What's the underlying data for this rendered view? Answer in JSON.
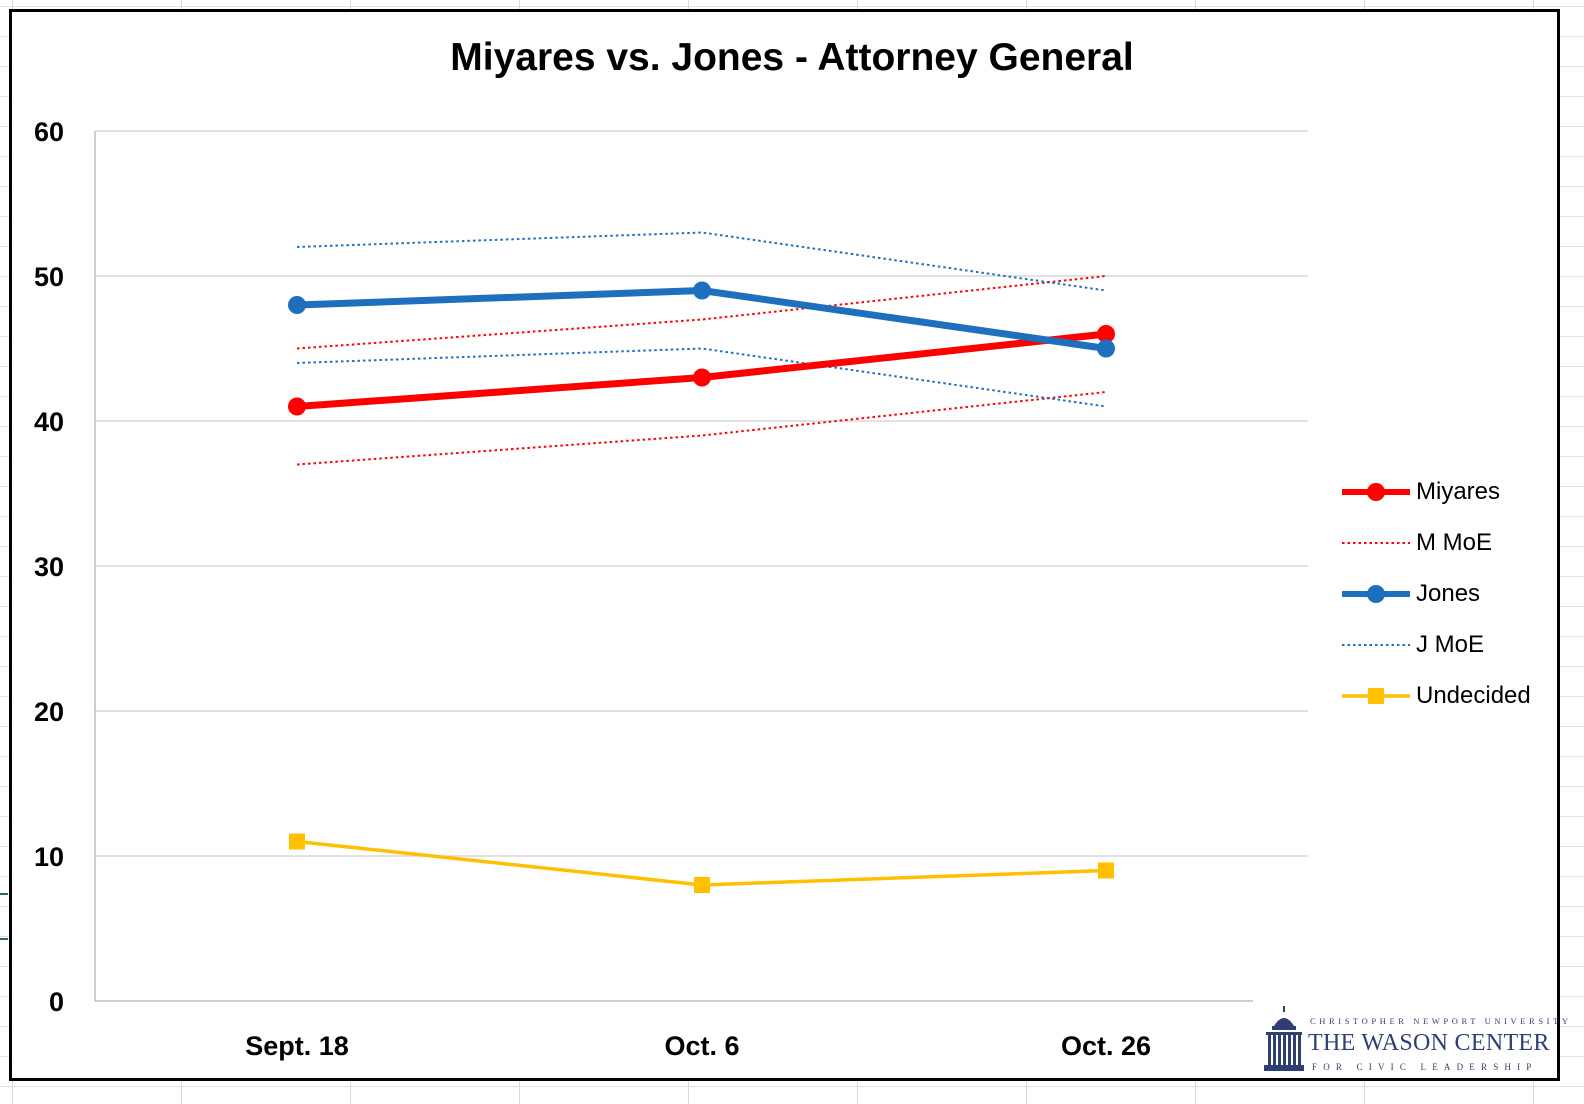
{
  "colors": {
    "miyares": "#ff0000",
    "jones": "#1f6fbf",
    "undecided": "#ffc000",
    "grid": "#d9d9d9",
    "axis": "#bfbfbf",
    "logo": "#2f3f73"
  },
  "logo": {
    "top_text": "CHRISTOPHER NEWPORT UNIVERSITY",
    "main_text": "THE WASON CENTER",
    "bottom_text": "FOR CIVIC LEADERSHIP",
    "icon": "capitol-dome-icon"
  },
  "chart_data": {
    "type": "line",
    "title": "Miyares vs. Jones - Attorney General",
    "xlabel": "",
    "ylabel": "",
    "categories": [
      "Sept. 18",
      "Oct. 6",
      "Oct. 26"
    ],
    "ylim": [
      0,
      60
    ],
    "yticks": [
      0,
      10,
      20,
      30,
      40,
      50,
      60
    ],
    "grid": true,
    "legend_position": "right",
    "series": [
      {
        "name": "Miyares",
        "style": "solid-marker-circle",
        "color": "#ff0000",
        "values": [
          41,
          43,
          46
        ]
      },
      {
        "name": "M MoE",
        "style": "dotted",
        "color": "#ff0000",
        "values": [
          45,
          47,
          50
        ],
        "values_lower": [
          37,
          39,
          42
        ]
      },
      {
        "name": "Jones",
        "style": "solid-marker-circle",
        "color": "#1f6fbf",
        "values": [
          48,
          49,
          45
        ]
      },
      {
        "name": "J MoE",
        "style": "dotted",
        "color": "#1f6fbf",
        "values": [
          52,
          53,
          49
        ],
        "values_lower": [
          44,
          45,
          41
        ]
      },
      {
        "name": "Undecided",
        "style": "solid-marker-square",
        "color": "#ffc000",
        "values": [
          11,
          8,
          9
        ]
      }
    ]
  }
}
